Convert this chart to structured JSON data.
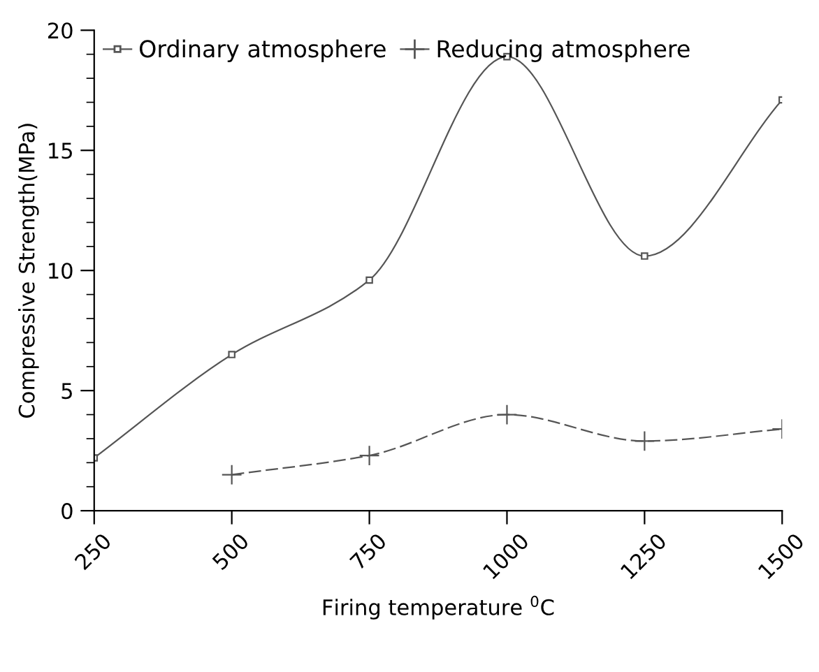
{
  "chart_data": {
    "type": "line",
    "xlabel": "Firing temperature $^{0}$C",
    "ylabel": "Compressive Strength(MPa)",
    "xlim": [
      250,
      1500
    ],
    "xticks": [
      250,
      500,
      750,
      1000,
      1250,
      1500
    ],
    "ylim": [
      0,
      20
    ],
    "yticks": [
      0,
      5,
      10,
      15,
      20
    ],
    "legend": "top left",
    "grid": false,
    "series": [
      {
        "name": "Ordinary atmosphere",
        "color": "#555555",
        "marker": "square",
        "line_style": "solid",
        "x": [
          250,
          500,
          750,
          1000,
          1250,
          1500
        ],
        "values": [
          2.2,
          6.5,
          9.6,
          18.9,
          10.6,
          17.1
        ]
      },
      {
        "name": "Reducing atmosphere",
        "color": "#555555",
        "marker": "cross",
        "line_style": "dashed",
        "x": [
          500,
          750,
          1000,
          1250,
          1500
        ],
        "values": [
          1.5,
          2.3,
          4.0,
          2.9,
          3.4
        ]
      }
    ]
  }
}
